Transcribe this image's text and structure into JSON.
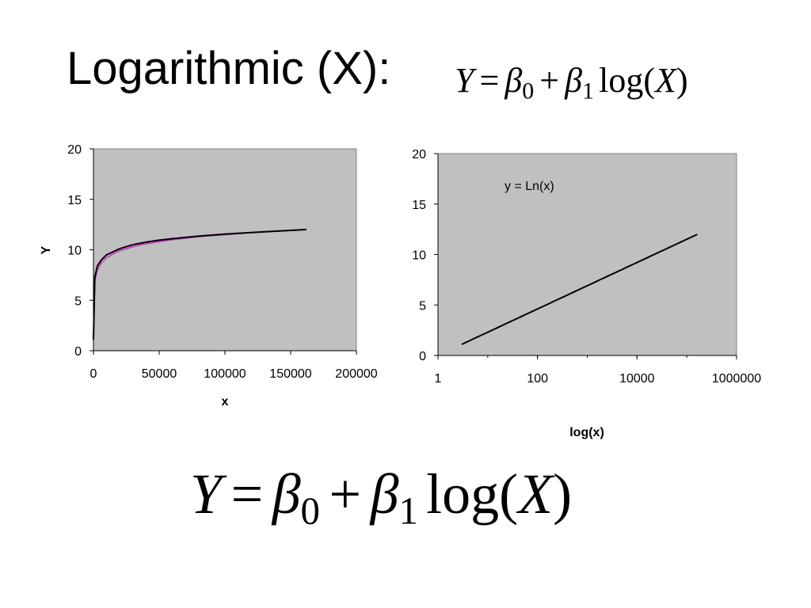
{
  "slide": {
    "title": "Logarithmic (X):"
  },
  "formula": {
    "Y": "Y",
    "eq": "=",
    "beta": "β",
    "sub0": "0",
    "plus": "+",
    "sub1": "1",
    "log": "log(",
    "X": "X",
    "close": ")"
  },
  "chart_data": [
    {
      "type": "line",
      "xlabel": "x",
      "ylabel": "Y",
      "xlim": [
        0,
        200000
      ],
      "ylim": [
        0,
        20
      ],
      "x_ticks": [
        "0",
        "50000",
        "100000",
        "150000",
        "200000"
      ],
      "y_ticks": [
        "0",
        "5",
        "10",
        "15",
        "20"
      ],
      "x_scale": "linear",
      "background": "#c0c0c0",
      "grid": false,
      "legend": "none",
      "series": [
        {
          "color": "#cc33cc",
          "x": [
            3,
            1000,
            3000,
            6000,
            10000,
            15000,
            20000,
            30000,
            40000,
            50000,
            60000,
            80000,
            100000,
            120000,
            140000,
            160000
          ],
          "y": [
            1.1,
            6.9,
            8.0,
            8.7,
            9.2,
            9.6,
            9.9,
            10.3,
            10.6,
            10.8,
            11.0,
            11.3,
            11.5,
            11.7,
            11.85,
            12.0
          ]
        },
        {
          "color": "#000000",
          "x": [
            3,
            1000,
            3000,
            6000,
            10000,
            15000,
            20000,
            30000,
            40000,
            50000,
            60000,
            80000,
            100000,
            120000,
            140000,
            162000
          ],
          "y": [
            1.1,
            7.3,
            8.4,
            9.0,
            9.5,
            9.8,
            10.1,
            10.5,
            10.75,
            10.95,
            11.1,
            11.35,
            11.55,
            11.7,
            11.85,
            12.0
          ]
        }
      ]
    },
    {
      "type": "line",
      "xlabel": "log(x)",
      "ylabel": "",
      "xlim": [
        1,
        1000000
      ],
      "ylim": [
        0,
        20
      ],
      "x_ticks": [
        "1",
        "100",
        "10000",
        "1000000"
      ],
      "y_ticks": [
        "0",
        "5",
        "10",
        "15",
        "20"
      ],
      "x_scale": "log",
      "background": "#c0c0c0",
      "grid": false,
      "legend": "none",
      "annotation": "y = Ln(x)",
      "series": [
        {
          "color": "#000000",
          "x": [
            3,
            10,
            100,
            1000,
            10000,
            100000,
            162000
          ],
          "y": [
            1.1,
            2.3,
            4.6,
            6.9,
            9.2,
            11.5,
            12.0
          ]
        }
      ]
    }
  ]
}
